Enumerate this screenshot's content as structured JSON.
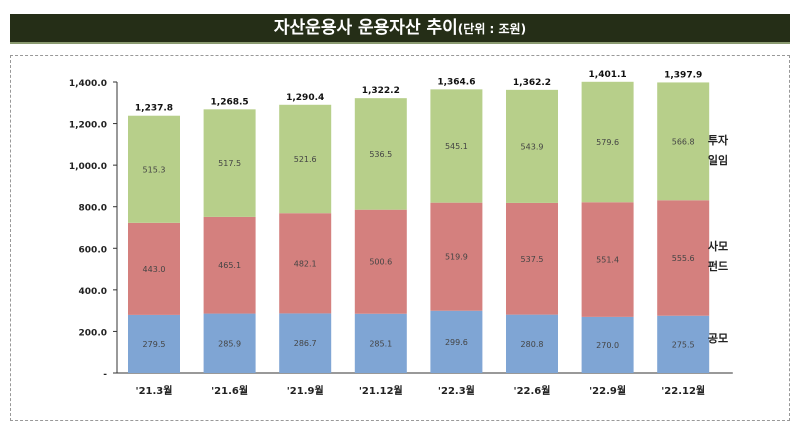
{
  "title": "자산운용사 운용자산 추이",
  "unit": "(단위 : 조원)",
  "chart_data": {
    "type": "bar",
    "stacked": true,
    "title": "자산운용사 운용자산 추이",
    "categories": [
      "'21.3월",
      "'21.6월",
      "'21.9월",
      "'21.12월",
      "'22.3월",
      "'22.6월",
      "'22.9월",
      "'22.12월"
    ],
    "series": [
      {
        "name": "공모",
        "color": "#7fa5d4",
        "values": [
          279.5,
          285.9,
          286.7,
          285.1,
          299.6,
          280.8,
          270.0,
          275.5
        ]
      },
      {
        "name": "사모펀드",
        "label_lines": [
          "사모",
          "펀드"
        ],
        "color": "#d4807e",
        "values": [
          443.0,
          465.1,
          482.1,
          500.6,
          519.9,
          537.5,
          551.4,
          555.6
        ]
      },
      {
        "name": "투자일임",
        "label_lines": [
          "투자",
          "일임"
        ],
        "color": "#b7cf8a",
        "values": [
          515.3,
          517.5,
          521.6,
          536.5,
          545.1,
          543.9,
          579.6,
          566.8
        ]
      }
    ],
    "totals": [
      "1,237.8",
      "1,268.5",
      "1,290.4",
      "1,322.2",
      "1,364.6",
      "1,362.2",
      "1,401.1",
      "1,397.9"
    ],
    "value_labels": [
      [
        "279.5",
        "285.9",
        "286.7",
        "285.1",
        "299.6",
        "280.8",
        "270.0",
        "275.5"
      ],
      [
        "443.0",
        "465.1",
        "482.1",
        "500.6",
        "519.9",
        "537.5",
        "551.4",
        "555.6"
      ],
      [
        "515.3",
        "517.5",
        "521.6",
        "536.5",
        "545.1",
        "543.9",
        "579.6",
        "566.8"
      ]
    ],
    "yticks": [
      "-",
      "200.0",
      "400.0",
      "600.0",
      "800.0",
      "1,000.0",
      "1,200.0",
      "1,400.0"
    ],
    "ylim": [
      0,
      1400
    ],
    "grid": false,
    "legend": "right"
  }
}
